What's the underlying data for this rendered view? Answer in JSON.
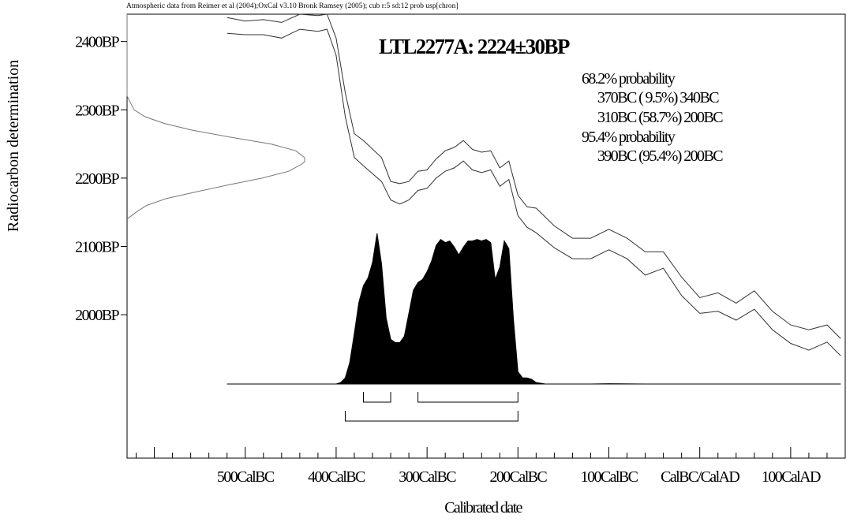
{
  "chart_data": {
    "type": "area",
    "header_note": "Atmospheric data from Reimer et al (2004);OxCal v3.10 Bronk Ramsey (2005); cub r:5 sd:12 prob usp[chron]",
    "title": "LTL2277A: 2224±30BP",
    "xlabel": "Calibrated date",
    "ylabel": "Radiocarbon determination",
    "x_unit": "calendar year (negative = BC)",
    "y_unit": "years BP",
    "xlim": [
      -630,
      160
    ],
    "ylim": [
      1790,
      2440
    ],
    "x_ticks": [
      {
        "value": -500,
        "label": "500CalBC"
      },
      {
        "value": -400,
        "label": "400CalBC"
      },
      {
        "value": -300,
        "label": "300CalBC"
      },
      {
        "value": -200,
        "label": "200CalBC"
      },
      {
        "value": -100,
        "label": "100CalBC"
      },
      {
        "value": 0,
        "label": "CalBC/CalAD"
      },
      {
        "value": 100,
        "label": "100CalAD"
      }
    ],
    "y_ticks": [
      {
        "value": 2400,
        "label": "2400BP"
      },
      {
        "value": 2300,
        "label": "2300BP"
      },
      {
        "value": 2200,
        "label": "2200BP"
      },
      {
        "value": 2100,
        "label": "2100BP"
      },
      {
        "value": 2000,
        "label": "2000BP"
      }
    ],
    "probability_text": [
      "68.2% probability",
      "370BC ( 9.5%) 340BC",
      "310BC (58.7%) 200BC",
      "95.4% probability",
      "390BC (95.4%) 200BC"
    ],
    "ranges_68": [
      [
        -370,
        -340
      ],
      [
        -310,
        -200
      ]
    ],
    "ranges_95": [
      [
        -390,
        -200
      ]
    ],
    "radiocarbon_date": {
      "mean": 2224,
      "sd": 30
    },
    "calibration_curve": {
      "years": [
        -520,
        -500,
        -480,
        -460,
        -440,
        -420,
        -410,
        -400,
        -390,
        -380,
        -370,
        -350,
        -340,
        -330,
        -320,
        -310,
        -300,
        -290,
        -280,
        -270,
        -260,
        -250,
        -240,
        -230,
        -220,
        -210,
        -200,
        -190,
        -180,
        -160,
        -140,
        -120,
        -100,
        -80,
        -60,
        -40,
        -20,
        0,
        20,
        40,
        60,
        80,
        100,
        120,
        140,
        155
      ],
      "upper": [
        2435,
        2430,
        2432,
        2428,
        2440,
        2438,
        2440,
        2405,
        2325,
        2265,
        2255,
        2230,
        2195,
        2192,
        2195,
        2210,
        2212,
        2228,
        2240,
        2245,
        2255,
        2242,
        2238,
        2240,
        2215,
        2225,
        2175,
        2158,
        2156,
        2130,
        2112,
        2112,
        2125,
        2112,
        2092,
        2092,
        2055,
        2025,
        2032,
        2017,
        2035,
        2005,
        1985,
        1978,
        1985,
        1965
      ],
      "lower": [
        2412,
        2410,
        2410,
        2405,
        2418,
        2415,
        2418,
        2380,
        2290,
        2230,
        2218,
        2195,
        2168,
        2162,
        2168,
        2182,
        2185,
        2200,
        2210,
        2215,
        2225,
        2212,
        2208,
        2212,
        2188,
        2198,
        2145,
        2128,
        2120,
        2098,
        2082,
        2082,
        2095,
        2082,
        2058,
        2068,
        2028,
        2002,
        2005,
        1992,
        2008,
        1978,
        1958,
        1948,
        1960,
        1940
      ]
    },
    "posterior_distribution": {
      "years": [
        -520,
        -400,
        -395,
        -390,
        -385,
        -380,
        -375,
        -370,
        -365,
        -360,
        -355,
        -350,
        -345,
        -340,
        -335,
        -330,
        -325,
        -320,
        -315,
        -310,
        -305,
        -300,
        -295,
        -290,
        -285,
        -280,
        -275,
        -270,
        -265,
        -260,
        -255,
        -250,
        -245,
        -240,
        -235,
        -230,
        -225,
        -220,
        -215,
        -210,
        -205,
        -200,
        -195,
        -190,
        -185,
        -180,
        -175,
        -170,
        -160,
        -140,
        -120,
        -100,
        -60,
        -20,
        20,
        60,
        100,
        155
      ],
      "prob": [
        0,
        0,
        0.01,
        0.04,
        0.14,
        0.33,
        0.53,
        0.64,
        0.69,
        0.79,
        0.98,
        0.78,
        0.43,
        0.29,
        0.27,
        0.27,
        0.31,
        0.46,
        0.61,
        0.66,
        0.68,
        0.73,
        0.8,
        0.9,
        0.94,
        0.92,
        0.93,
        0.89,
        0.84,
        0.89,
        0.93,
        0.93,
        0.94,
        0.93,
        0.94,
        0.92,
        0.68,
        0.76,
        0.93,
        0.88,
        0.42,
        0.08,
        0.04,
        0.04,
        0.03,
        0.01,
        0.005,
        0,
        0,
        0,
        0,
        0.002,
        0,
        0,
        0,
        0,
        0,
        0
      ]
    },
    "radiocarbon_profile": {
      "bp": [
        2440,
        2320,
        2300,
        2290,
        2280,
        2270,
        2260,
        2250,
        2240,
        2230,
        2224,
        2220,
        2210,
        2200,
        2190,
        2180,
        2170,
        2160,
        2150,
        2140
      ],
      "density": [
        0,
        0,
        0.04,
        0.1,
        0.21,
        0.37,
        0.58,
        0.81,
        0.95,
        1.0,
        1.0,
        0.98,
        0.91,
        0.76,
        0.57,
        0.39,
        0.22,
        0.11,
        0.05,
        0
      ]
    }
  }
}
